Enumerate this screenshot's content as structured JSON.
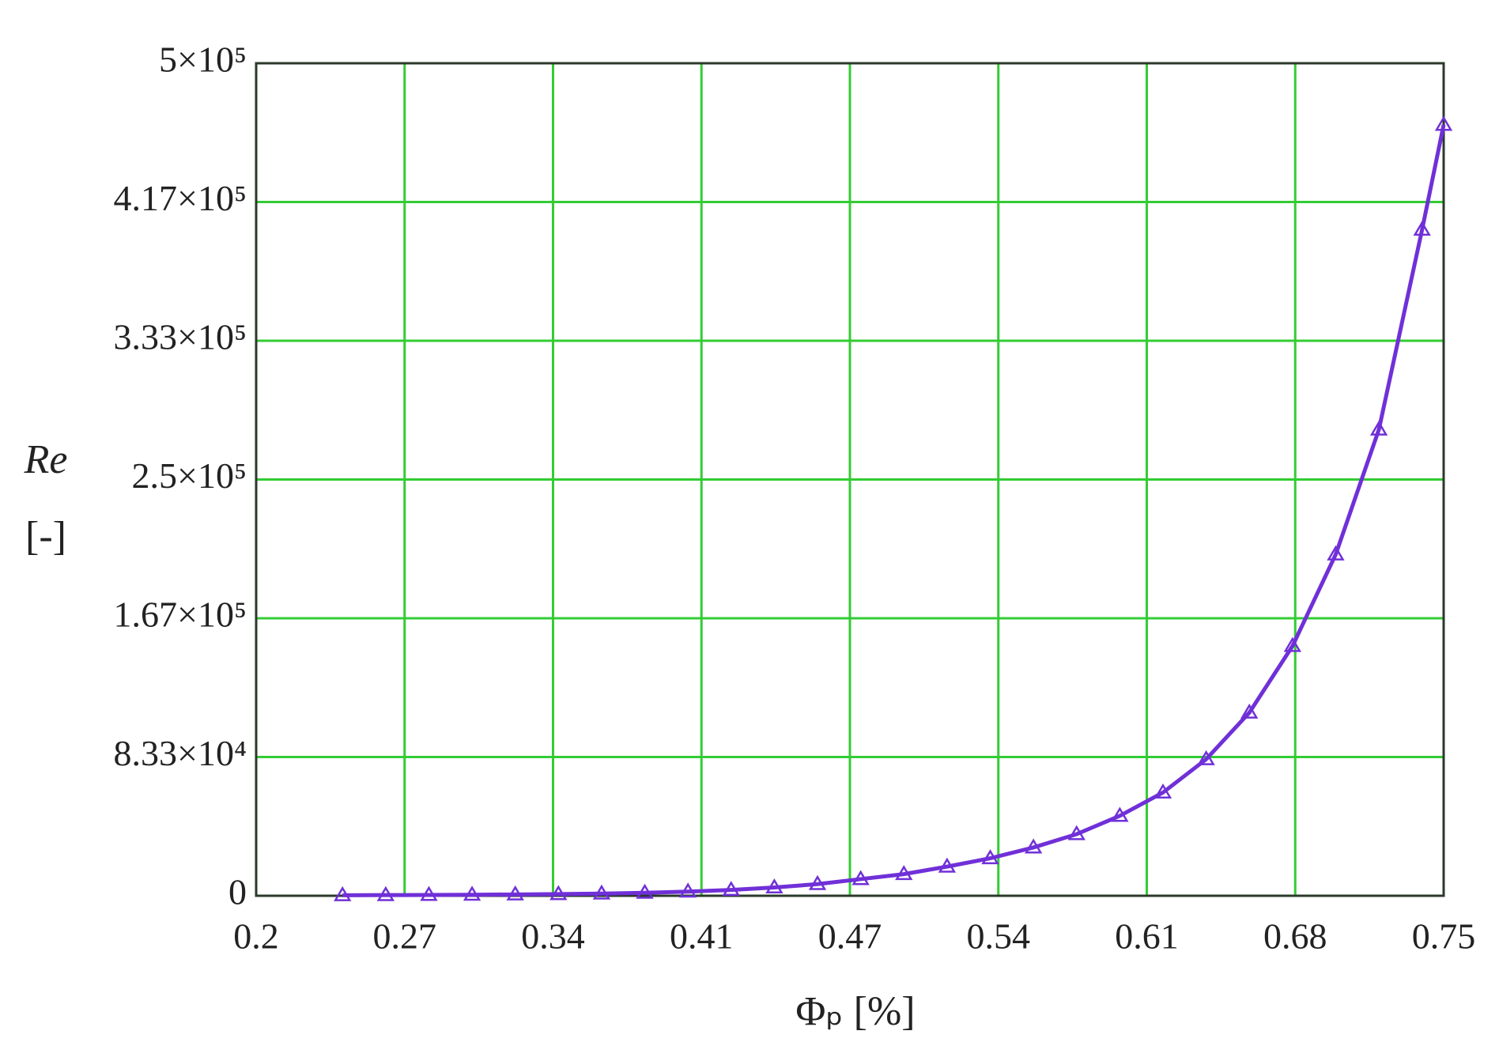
{
  "chart_data": {
    "type": "line",
    "xlabel": "Φₚ [%]",
    "ylabel": [
      "Re",
      "[-]"
    ],
    "x": [
      0.24,
      0.26,
      0.28,
      0.3,
      0.32,
      0.34,
      0.36,
      0.38,
      0.4,
      0.42,
      0.44,
      0.46,
      0.48,
      0.5,
      0.52,
      0.54,
      0.56,
      0.58,
      0.6,
      0.62,
      0.64,
      0.66,
      0.68,
      0.7,
      0.72,
      0.74,
      0.75
    ],
    "series": [
      {
        "color": "#7030d8",
        "marker": "triangle",
        "values": [
          300,
          400,
          500,
          600,
          800,
          1000,
          1300,
          1800,
          2500,
          3500,
          5000,
          7000,
          10000,
          13000,
          17500,
          22500,
          29000,
          37000,
          48000,
          62000,
          82000,
          110000,
          150000,
          205000,
          280000,
          400000,
          463000
        ]
      }
    ],
    "xlim": [
      0.2,
      0.75
    ],
    "xticks": [
      0.2,
      {
        "value": 0.26875,
        "label": "0.27"
      },
      {
        "value": 0.3375,
        "label": "0.34"
      },
      {
        "value": 0.40625,
        "label": "0.41"
      },
      {
        "value": 0.475,
        "label": "0.47"
      },
      {
        "value": 0.54375,
        "label": "0.54"
      },
      {
        "value": 0.6125,
        "label": "0.61"
      },
      {
        "value": 0.68125,
        "label": "0.68"
      },
      0.75
    ],
    "ylim": [
      0,
      500000
    ],
    "yticks": [
      0,
      {
        "value": 83333,
        "label": "8.33×10⁴"
      },
      {
        "value": 166667,
        "label": "1.67×10⁵"
      },
      {
        "value": 250000,
        "label": "2.5×10⁵"
      },
      {
        "value": 333333,
        "label": "3.33×10⁵"
      },
      {
        "value": 416667,
        "label": "4.17×10⁵"
      },
      {
        "value": 500000,
        "label": "5×10⁵"
      }
    ],
    "grid": true,
    "grid_color": "#33cc33"
  }
}
